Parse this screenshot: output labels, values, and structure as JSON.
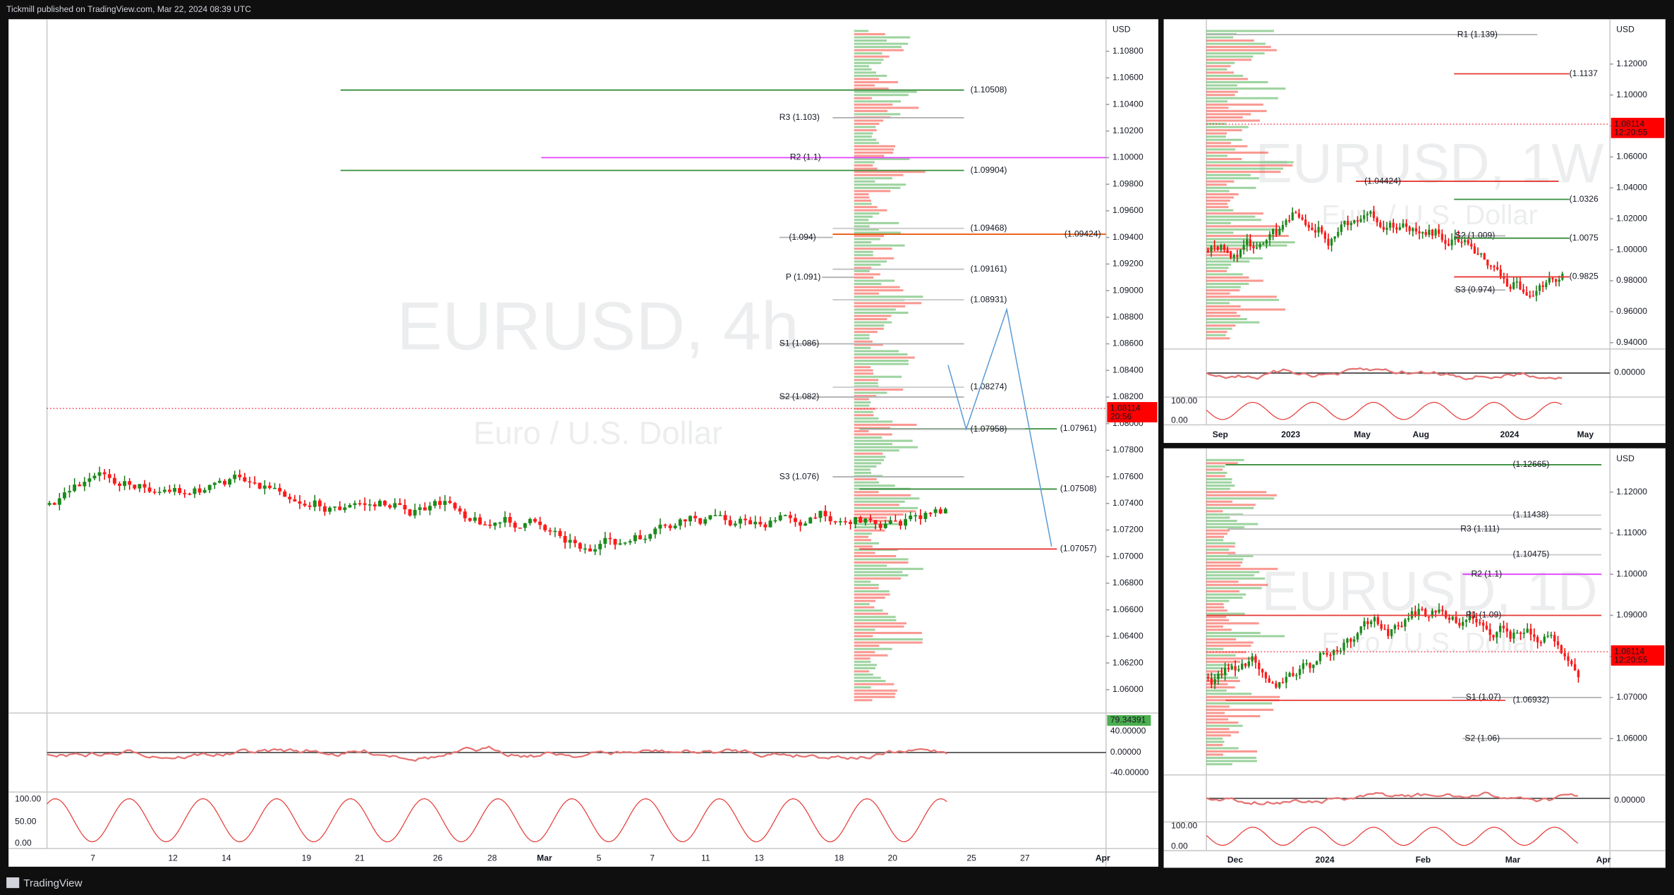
{
  "header": {
    "text": "Tickmill published on TradingView.com, Mar 22, 2024 08:39 UTC"
  },
  "footer": {
    "brand": "TradingView"
  },
  "panels": [
    {
      "symbol": "EURUSD, 4h",
      "description": "Euro / U.S. Dollar",
      "currency": "USD",
      "price_ticks": [
        {
          "value": 1.108,
          "label": "1.10800"
        },
        {
          "value": 1.106,
          "label": "1.10600"
        },
        {
          "value": 1.104,
          "label": "1.10400"
        },
        {
          "value": 1.102,
          "label": "1.10200"
        },
        {
          "value": 1.1,
          "label": "1.10000"
        },
        {
          "value": 1.098,
          "label": "1.09800"
        },
        {
          "value": 1.096,
          "label": "1.09600"
        },
        {
          "value": 1.094,
          "label": "1.09400"
        },
        {
          "value": 1.092,
          "label": "1.09200"
        },
        {
          "value": 1.09,
          "label": "1.09000"
        },
        {
          "value": 1.088,
          "label": "1.08800"
        },
        {
          "value": 1.086,
          "label": "1.08600"
        },
        {
          "value": 1.084,
          "label": "1.08400"
        },
        {
          "value": 1.082,
          "label": "1.08200"
        },
        {
          "value": 1.08,
          "label": "1.08000"
        },
        {
          "value": 1.078,
          "label": "1.07800"
        },
        {
          "value": 1.076,
          "label": "1.07600"
        },
        {
          "value": 1.074,
          "label": "1.07400"
        },
        {
          "value": 1.072,
          "label": "1.07200"
        },
        {
          "value": 1.07,
          "label": "1.07000"
        },
        {
          "value": 1.068,
          "label": "1.06800"
        },
        {
          "value": 1.066,
          "label": "1.06600"
        },
        {
          "value": 1.064,
          "label": "1.06400"
        },
        {
          "value": 1.062,
          "label": "1.06200"
        },
        {
          "value": 1.06,
          "label": "1.06000"
        }
      ],
      "last_price": {
        "value": 1.08114,
        "label": "1.08114",
        "countdown": "20:56"
      },
      "levels": [
        {
          "price": 1.10508,
          "label": "(1.10508)",
          "color": "#388e3c"
        },
        {
          "price": 1.103,
          "label": "R3 (1.103)",
          "color": "#b0b0b0"
        },
        {
          "price": 1.1,
          "label": "R2 (1.1)",
          "color": "#e040fb"
        },
        {
          "price": 1.09904,
          "label": "(1.09904)",
          "color": "#388e3c"
        },
        {
          "price": 1.09468,
          "label": "(1.09468)",
          "color": "#cccccc"
        },
        {
          "price": 1.09424,
          "label": "(1.09424)",
          "color": "#e65100"
        },
        {
          "price": 1.094,
          "label": "(1.094)",
          "color": "#b0b0b0"
        },
        {
          "price": 1.09161,
          "label": "(1.09161)",
          "color": "#c0c0c0"
        },
        {
          "price": 1.091,
          "label": "P (1.091)",
          "color": "#b0b0b0"
        },
        {
          "price": 1.08931,
          "label": "(1.08931)",
          "color": "#c8c8c8"
        },
        {
          "price": 1.086,
          "label": "S1 (1.086)",
          "color": "#b0b0b0"
        },
        {
          "price": 1.08274,
          "label": "(1.08274)",
          "color": "#c8c8c8"
        },
        {
          "price": 1.082,
          "label": "S2 (1.082)",
          "color": "#b0b0b0"
        },
        {
          "price": 1.07961,
          "label": "(1.07961)",
          "color": "#388e3c"
        },
        {
          "price": 1.07958,
          "label": "(1.07958)",
          "color": "#b0b0b0"
        },
        {
          "price": 1.076,
          "label": "S3 (1.076)",
          "color": "#b0b0b0"
        },
        {
          "price": 1.07508,
          "label": "(1.07508)",
          "color": "#388e3c"
        },
        {
          "price": 1.07057,
          "label": "(1.07057)",
          "color": "#e53935"
        }
      ],
      "indicator_labels": [
        {
          "text": "79.34391",
          "badge": true
        },
        {
          "text": "40.00000"
        },
        {
          "text": "0.00000"
        },
        {
          "text": "-40.00000"
        }
      ],
      "stoch_labels": [
        "100.00",
        "50.00",
        "0.00"
      ],
      "dates": [
        "7",
        "12",
        "14",
        "19",
        "21",
        "26",
        "28",
        "Mar",
        "5",
        "7",
        "11",
        "13",
        "18",
        "20",
        "25",
        "27",
        "Apr"
      ]
    },
    {
      "symbol": "EURUSD, 1W",
      "description": "Euro / U.S. Dollar",
      "currency": "USD",
      "price_ticks": [
        {
          "value": 1.12,
          "label": "1.12000"
        },
        {
          "value": 1.1,
          "label": "1.10000"
        },
        {
          "value": 1.08,
          "label": "1.08000"
        },
        {
          "value": 1.06,
          "label": "1.06000"
        },
        {
          "value": 1.04,
          "label": "1.04000"
        },
        {
          "value": 1.02,
          "label": "1.02000"
        },
        {
          "value": 1.0,
          "label": "1.00000"
        },
        {
          "value": 0.98,
          "label": "0.98000"
        },
        {
          "value": 0.96,
          "label": "0.96000"
        },
        {
          "value": 0.94,
          "label": "0.94000"
        }
      ],
      "last_price": {
        "value": 1.08114,
        "label": "1.08114",
        "countdown": "12:20:55"
      },
      "levels": [
        {
          "price": 1.139,
          "label": "R1 (1.139)",
          "color": "#b0b0b0"
        },
        {
          "price": 1.1137,
          "label": "(1.1137",
          "color": "#e53935"
        },
        {
          "price": 1.04424,
          "label": "(1.04424)",
          "color": "#e53935"
        },
        {
          "price": 1.0326,
          "label": "(1.0326",
          "color": "#388e3c"
        },
        {
          "price": 1.009,
          "label": "S2 (1.009)",
          "color": "#b0b0b0"
        },
        {
          "price": 1.0075,
          "label": "(1.0075",
          "color": "#388e3c"
        },
        {
          "price": 0.9825,
          "label": "(0.9825",
          "color": "#e53935"
        },
        {
          "price": 0.974,
          "label": "S3 (0.974)",
          "color": "#b0b0b0"
        }
      ],
      "indicator_labels": [
        {
          "text": "0.00000"
        }
      ],
      "stoch_labels": [
        "100.00",
        "0.00"
      ],
      "dates": [
        "Sep",
        "2023",
        "May",
        "Aug",
        "2024",
        "May"
      ]
    },
    {
      "symbol": "EURUSD, 1D",
      "description": "Euro / U.S. Dollar",
      "currency": "USD",
      "price_ticks": [
        {
          "value": 1.12,
          "label": "1.12000"
        },
        {
          "value": 1.11,
          "label": "1.11000"
        },
        {
          "value": 1.1,
          "label": "1.10000"
        },
        {
          "value": 1.09,
          "label": "1.09000"
        },
        {
          "value": 1.08,
          "label": "1.08000"
        },
        {
          "value": 1.07,
          "label": "1.07000"
        },
        {
          "value": 1.06,
          "label": "1.06000"
        }
      ],
      "last_price": {
        "value": 1.08114,
        "label": "1.08114",
        "countdown": "12:20:55"
      },
      "levels": [
        {
          "price": 1.12665,
          "label": "(1.12665)",
          "color": "#388e3c"
        },
        {
          "price": 1.11438,
          "label": "(1.11438)",
          "color": "#cccccc"
        },
        {
          "price": 1.111,
          "label": "R3 (1.111)",
          "color": "#b0b0b0"
        },
        {
          "price": 1.10475,
          "label": "(1.10475)",
          "color": "#cccccc"
        },
        {
          "price": 1.1,
          "label": "R2 (1.1)",
          "color": "#e040fb"
        },
        {
          "price": 1.09,
          "label": "R1 (1.09)",
          "color": "#e53935"
        },
        {
          "price": 1.07,
          "label": "S1 (1.07)",
          "color": "#b0b0b0"
        },
        {
          "price": 1.06932,
          "label": "(1.06932)",
          "color": "#e53935"
        },
        {
          "price": 1.06,
          "label": "S2 (1.06)",
          "color": "#b0b0b0"
        }
      ],
      "indicator_labels": [
        {
          "text": "0.00000"
        }
      ],
      "stoch_labels": [
        "100.00",
        "0.00"
      ],
      "dates": [
        "Dec",
        "2024",
        "Feb",
        "Mar",
        "Apr"
      ]
    }
  ]
}
